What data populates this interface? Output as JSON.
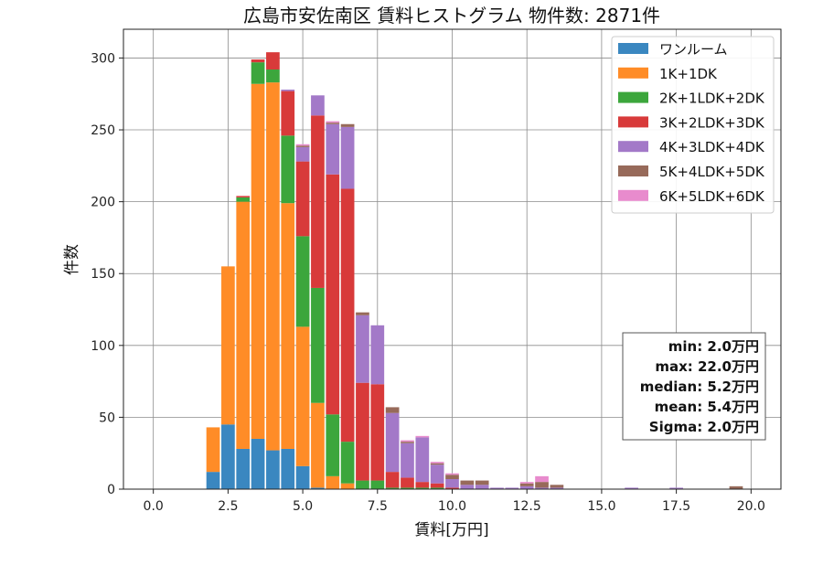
{
  "chart_data": {
    "type": "bar",
    "stacked": true,
    "title": "広島市安佐南区 賃料ヒストグラム 物件数: 2871件",
    "xlabel": "賃料[万円]",
    "ylabel": "件数",
    "xlim": [
      -1.0,
      21.0
    ],
    "ylim": [
      0,
      320
    ],
    "xticks": [
      0,
      2.5,
      5,
      7.5,
      10,
      12.5,
      15,
      17.5,
      20
    ],
    "xtick_labels": [
      "0.0",
      "2.5",
      "5.0",
      "7.5",
      "10.0",
      "12.5",
      "15.0",
      "17.5",
      "20.0"
    ],
    "yticks": [
      0,
      50,
      100,
      150,
      200,
      250,
      300
    ],
    "ytick_labels": [
      "0",
      "50",
      "100",
      "150",
      "200",
      "250",
      "300"
    ],
    "grid": true,
    "legend_position": "top-right",
    "bin_width": 0.5,
    "x": [
      2.0,
      2.5,
      3.0,
      3.5,
      4.0,
      4.5,
      5.0,
      5.5,
      6.0,
      6.5,
      7.0,
      7.5,
      8.0,
      8.5,
      9.0,
      9.5,
      10.0,
      10.5,
      11.0,
      11.5,
      12.0,
      12.5,
      13.0,
      13.5,
      14.0,
      14.5,
      15.0,
      15.5,
      16.0,
      16.5,
      17.0,
      17.5,
      18.0,
      18.5,
      19.0,
      19.5,
      20.0
    ],
    "series": [
      {
        "name": "ワンルーム",
        "color": "#3a87c0",
        "values": [
          12,
          45,
          28,
          35,
          27,
          28,
          16,
          1,
          0,
          0,
          0,
          0,
          0,
          0,
          0,
          0,
          0,
          0,
          0,
          0,
          0,
          0,
          0,
          0,
          0,
          0,
          0,
          0,
          0,
          0,
          0,
          0,
          0,
          0,
          0,
          0,
          0
        ]
      },
      {
        "name": "1K+1DK",
        "color": "#ff8c27",
        "values": [
          31,
          110,
          172,
          247,
          256,
          171,
          97,
          59,
          9,
          4,
          0,
          0,
          0,
          0,
          0,
          0,
          0,
          0,
          0,
          0,
          0,
          0,
          0,
          0,
          0,
          0,
          0,
          0,
          0,
          0,
          0,
          0,
          0,
          0,
          0,
          0,
          0
        ]
      },
      {
        "name": "2K+1LDK+2DK",
        "color": "#3ca63c",
        "values": [
          0,
          0,
          3,
          15,
          9,
          47,
          63,
          80,
          43,
          29,
          6,
          6,
          1,
          1,
          1,
          1,
          0,
          0,
          0,
          0,
          0,
          0,
          0,
          0,
          0,
          0,
          0,
          0,
          0,
          0,
          0,
          0,
          0,
          0,
          0,
          0,
          0
        ]
      },
      {
        "name": "3K+2LDK+3DK",
        "color": "#d83a3a",
        "values": [
          0,
          0,
          1,
          2,
          12,
          31,
          52,
          120,
          167,
          176,
          68,
          67,
          11,
          7,
          4,
          3,
          1,
          0,
          0,
          0,
          0,
          0,
          0,
          0,
          0,
          0,
          0,
          0,
          0,
          0,
          0,
          0,
          0,
          0,
          0,
          0,
          0
        ]
      },
      {
        "name": "4K+3LDK+4DK",
        "color": "#a379c8",
        "values": [
          0,
          0,
          0,
          0,
          0,
          1,
          10,
          14,
          35,
          43,
          47,
          41,
          41,
          24,
          31,
          13,
          6,
          3,
          3,
          1,
          1,
          2,
          1,
          1,
          0,
          0,
          0,
          0,
          1,
          0,
          0,
          1,
          0,
          0,
          0,
          0,
          0
        ]
      },
      {
        "name": "5K+4LDK+5DK",
        "color": "#976a5a",
        "values": [
          0,
          0,
          0,
          0,
          0,
          0,
          1,
          0,
          1,
          2,
          2,
          0,
          4,
          1,
          0,
          1,
          3,
          3,
          3,
          0,
          0,
          2,
          4,
          2,
          0,
          0,
          0,
          0,
          0,
          0,
          0,
          0,
          0,
          0,
          0,
          2,
          0
        ]
      },
      {
        "name": "6K+5LDK+6DK",
        "color": "#e88bcd",
        "values": [
          0,
          0,
          0,
          0,
          0,
          0,
          1,
          0,
          1,
          0,
          0,
          0,
          0,
          1,
          1,
          1,
          1,
          0,
          0,
          0,
          0,
          1,
          4,
          0,
          0,
          0,
          0,
          0,
          0,
          0,
          0,
          0,
          0,
          0,
          0,
          0,
          0
        ]
      }
    ]
  },
  "stats": {
    "min": "min: 2.0万円",
    "max": "max: 22.0万円",
    "median": "median: 5.2万円",
    "mean": "mean: 5.4万円",
    "sigma": "Sigma: 2.0万円"
  }
}
